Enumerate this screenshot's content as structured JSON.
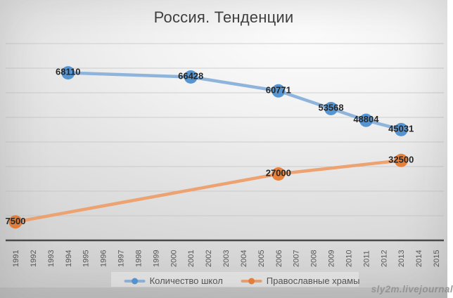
{
  "title": "Россия. Тенденции",
  "watermark": "sly2m.livejournal",
  "chart_data": {
    "type": "line",
    "title": "Россия. Тенденции",
    "x_ticks": [
      1991,
      1992,
      1993,
      1994,
      1995,
      1996,
      1997,
      1998,
      1999,
      2000,
      2001,
      2002,
      2003,
      2004,
      2005,
      2006,
      2007,
      2008,
      2009,
      2010,
      2011,
      2012,
      2013,
      2014,
      2015
    ],
    "xlim": [
      1991,
      2015
    ],
    "ylim": [
      0,
      80000
    ],
    "grid_step": 10000,
    "grid": true,
    "legend_position": "bottom",
    "grid_color": "#c3c3c3",
    "axis_color": "#4a4a4a",
    "tick_label_color": "#595959",
    "data_label_color": "#262626",
    "series": [
      {
        "name": "Количество школ",
        "marker_color": "#5795d2",
        "line_color": "#8fb4dc",
        "points": [
          [
            1994,
            68110
          ],
          [
            2001,
            66428
          ],
          [
            2006,
            60771
          ],
          [
            2009,
            53568
          ],
          [
            2011,
            48804
          ],
          [
            2013,
            45031
          ]
        ]
      },
      {
        "name": "Православные храмы",
        "marker_color": "#e8813c",
        "line_color": "#eda271",
        "points": [
          [
            1991,
            7500
          ],
          [
            2006,
            27000
          ],
          [
            2013,
            32500
          ]
        ]
      }
    ]
  }
}
